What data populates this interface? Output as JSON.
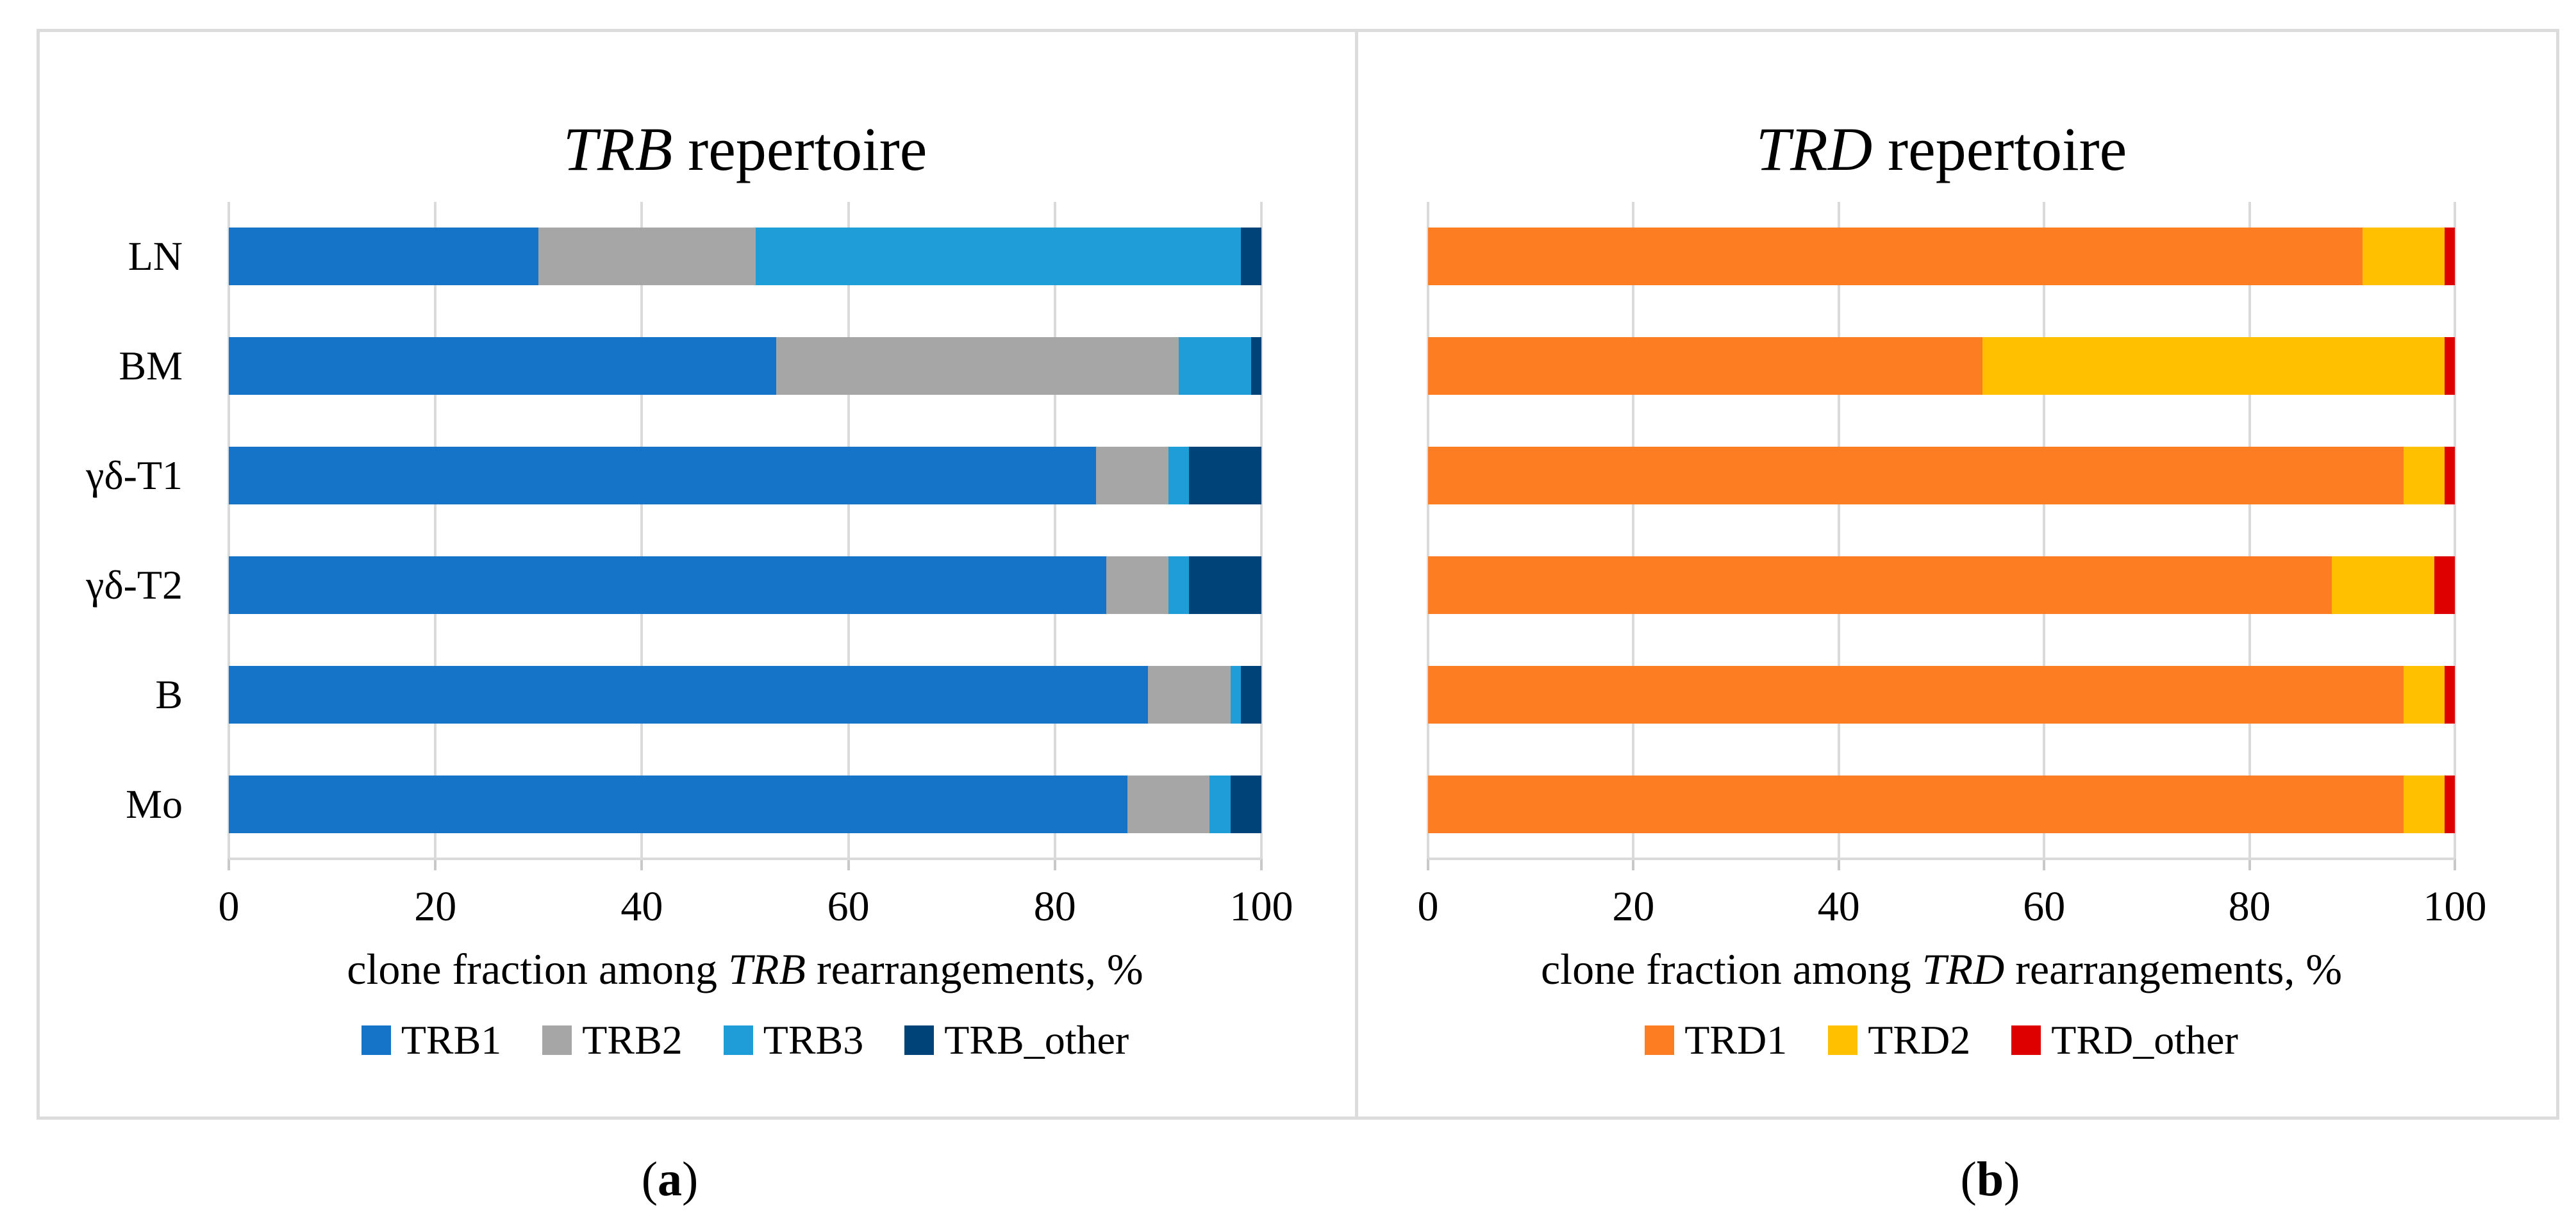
{
  "figure": {
    "background": "#FFFFFF",
    "border_color": "#DCDCDC",
    "gridline_color": "#DADADA",
    "panel_a": {
      "title_italic": "TRB",
      "title_rest": " repertoire",
      "xlabel_pre": "clone fraction among ",
      "xlabel_italic": "TRB",
      "xlabel_post": " rearrangements, %",
      "caption_open": "(",
      "caption_letter": "a",
      "caption_close": ")"
    },
    "panel_b": {
      "title_italic": "TRD",
      "title_rest": " repertoire",
      "xlabel_pre": "clone fraction among ",
      "xlabel_italic": "TRD",
      "xlabel_post": " rearrangements, %",
      "caption_open": "(",
      "caption_letter": "b",
      "caption_close": ")"
    }
  },
  "chart_data": [
    {
      "type": "bar",
      "panel": "a",
      "orientation": "horizontal",
      "stacked": true,
      "title": "TRB repertoire",
      "xlabel": "clone fraction among TRB rearrangements, %",
      "xlim": [
        0,
        100
      ],
      "xticks": [
        0,
        20,
        40,
        60,
        80,
        100
      ],
      "grid": true,
      "legend_position": "bottom",
      "show_category_labels": true,
      "categories": [
        "LN",
        "BM",
        "γδ-T1",
        "γδ-T2",
        "B",
        "Mo"
      ],
      "series": [
        {
          "name": "TRB1",
          "color": "#1573C8",
          "values": [
            30,
            53,
            84,
            85,
            89,
            87
          ]
        },
        {
          "name": "TRB2",
          "color": "#A6A6A6",
          "values": [
            21,
            39,
            7,
            6,
            8,
            8
          ]
        },
        {
          "name": "TRB3",
          "color": "#1E9DD9",
          "values": [
            47,
            7,
            2,
            2,
            1,
            2
          ]
        },
        {
          "name": "TRB_other",
          "color": "#004378",
          "values": [
            2,
            1,
            7,
            7,
            2,
            3
          ]
        }
      ]
    },
    {
      "type": "bar",
      "panel": "b",
      "orientation": "horizontal",
      "stacked": true,
      "title": "TRD repertoire",
      "xlabel": "clone fraction among TRD rearrangements, %",
      "xlim": [
        0,
        100
      ],
      "xticks": [
        0,
        20,
        40,
        60,
        80,
        100
      ],
      "grid": true,
      "legend_position": "bottom",
      "show_category_labels": false,
      "categories": [
        "LN",
        "BM",
        "γδ-T1",
        "γδ-T2",
        "B",
        "Mo"
      ],
      "series": [
        {
          "name": "TRD1",
          "color": "#FD7D23",
          "values": [
            91,
            54,
            95,
            88,
            95,
            95
          ]
        },
        {
          "name": "TRD2",
          "color": "#FFC000",
          "values": [
            8,
            45,
            4,
            10,
            4,
            4
          ]
        },
        {
          "name": "TRD_other",
          "color": "#DE0000",
          "values": [
            1,
            1,
            1,
            2,
            1,
            1
          ]
        }
      ]
    }
  ]
}
